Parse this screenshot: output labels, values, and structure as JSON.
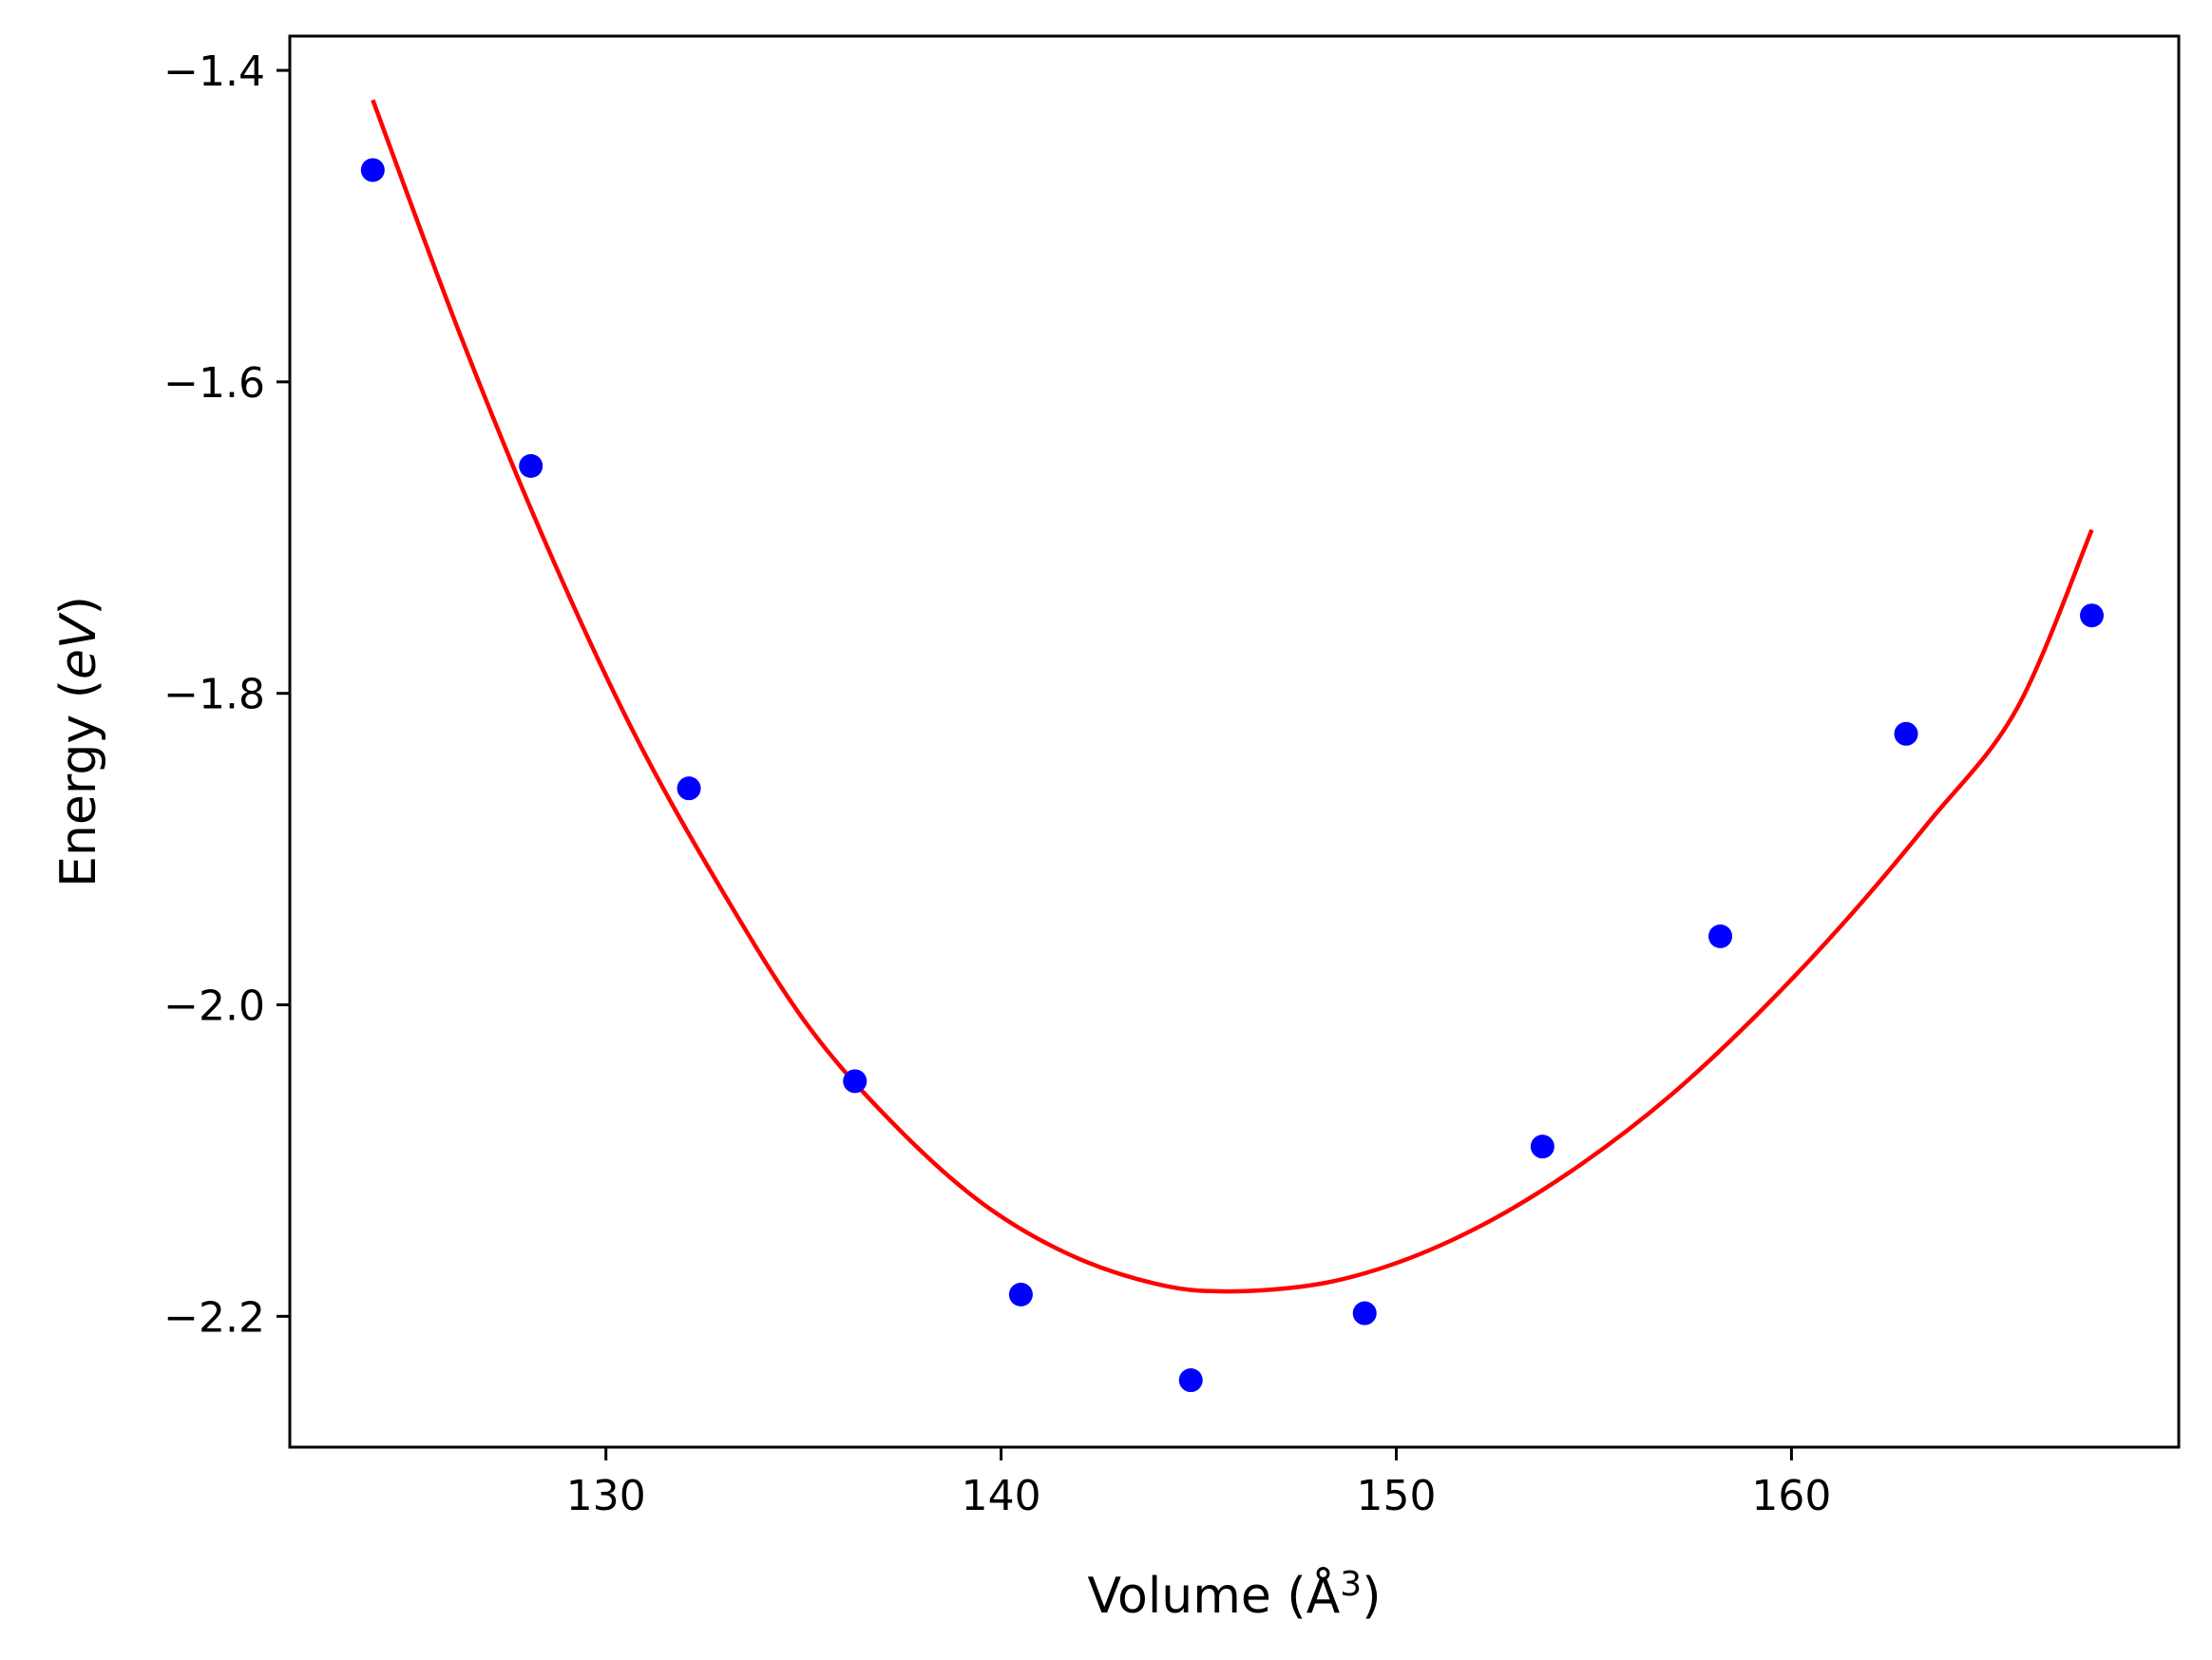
{
  "chart_data": {
    "type": "scatter",
    "title": "",
    "xlabel": "Volume (Å",
    "xlabel_sup": "3",
    "xlabel_end": ")",
    "ylabel": "Energy (",
    "ylabel_unit": "eV",
    "ylabel_end": ")",
    "xlim": [
      122,
      169.8
    ],
    "ylim": [
      -2.284,
      -1.378
    ],
    "xticks": [
      130,
      140,
      150,
      160
    ],
    "xtick_labels": [
      "130",
      "140",
      "150",
      "160"
    ],
    "yticks": [
      -2.2,
      -2.0,
      -1.8,
      -1.6,
      -1.4
    ],
    "ytick_labels": [
      "−2.2",
      "−2.0",
      "−1.8",
      "−1.6",
      "−1.4"
    ],
    "grid": false,
    "series": [
      {
        "kind": "points",
        "color": "#0000ff",
        "x": [
          124.1,
          128.1,
          132.1,
          136.3,
          140.5,
          144.8,
          149.2,
          153.7,
          158.2,
          162.9,
          167.6
        ],
        "y": [
          -1.464,
          -1.654,
          -1.861,
          -2.049,
          -2.186,
          -2.241,
          -2.198,
          -2.091,
          -1.956,
          -1.826,
          -1.75
        ]
      },
      {
        "kind": "line",
        "color": "#ff0000",
        "x": [
          124.1,
          126.3,
          128.5,
          130.7,
          132.9,
          135.1,
          137.3,
          139.5,
          141.7,
          143.9,
          145.7,
          148.1,
          150.3,
          152.5,
          154.7,
          156.9,
          159.1,
          161.3,
          163.5,
          165.7,
          167.6
        ],
        "y": [
          -1.419,
          -1.569,
          -1.705,
          -1.825,
          -1.925,
          -2.013,
          -2.077,
          -2.127,
          -2.16,
          -2.179,
          -2.184,
          -2.179,
          -2.163,
          -2.137,
          -2.102,
          -2.059,
          -2.007,
          -1.948,
          -1.882,
          -1.81,
          -1.695
        ]
      }
    ]
  }
}
